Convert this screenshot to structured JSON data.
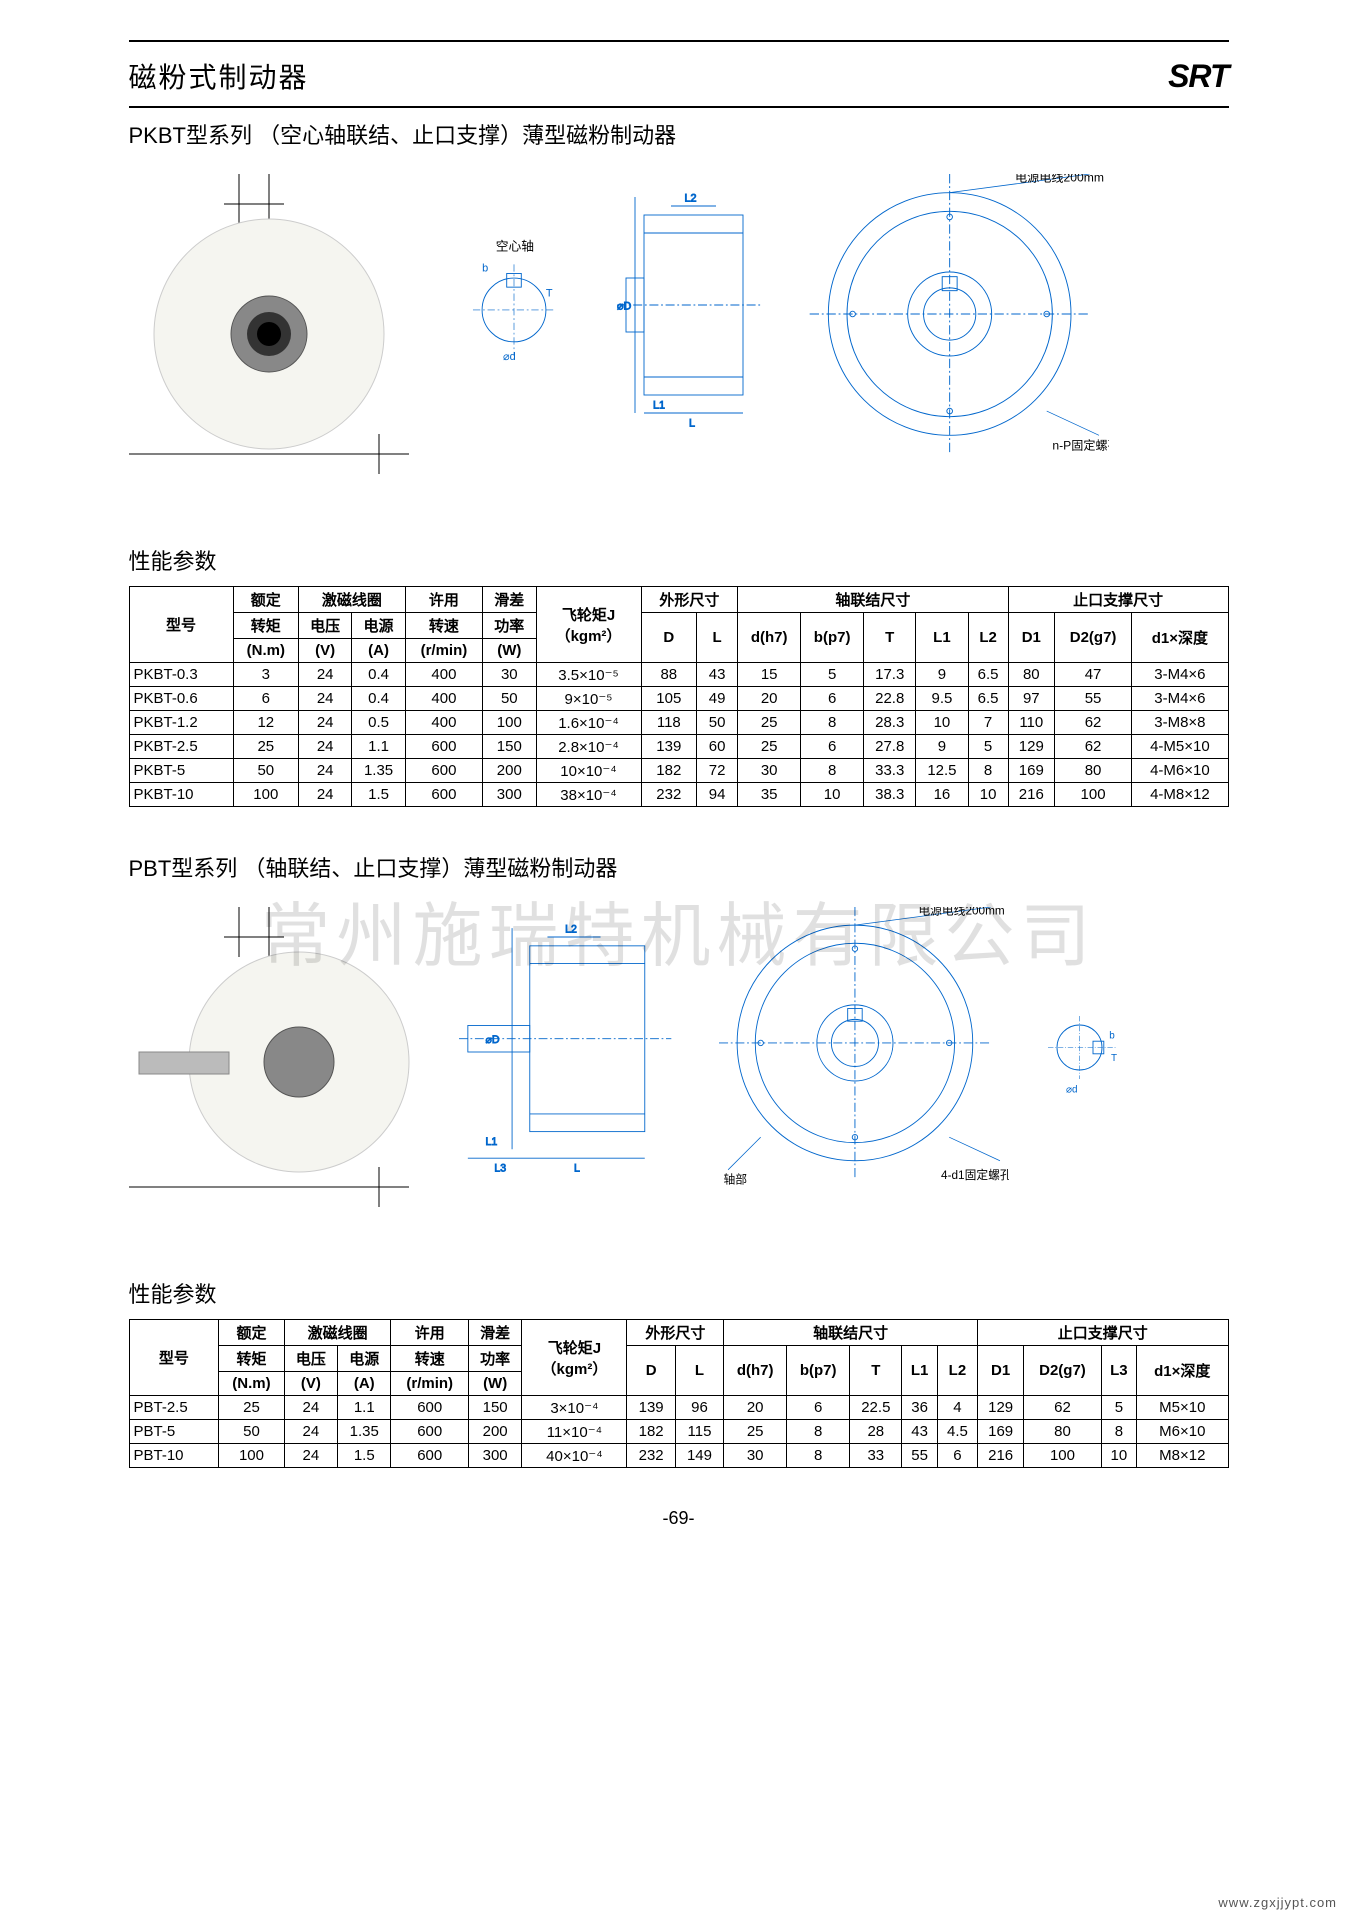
{
  "header": {
    "main_title": "磁粉式制动器",
    "logo": "SRT"
  },
  "section1": {
    "subtitle": "PKBT型系列 （空心轴联结、止口支撑）薄型磁粉制动器",
    "diagram_labels": {
      "power_cable": "电源电线200mm",
      "hollow_shaft": "空心轴",
      "screw_hole": "n-P固定螺孔"
    },
    "perf_title": "性能参数",
    "columns": {
      "model": "型号",
      "torque_group": "额定",
      "torque": "转矩",
      "torque_unit": "(N.m)",
      "coil_group": "激磁线圈",
      "voltage": "电压",
      "voltage_unit": "(V)",
      "current": "电源",
      "current_unit": "(A)",
      "speed_group": "许用",
      "speed": "转速",
      "speed_unit": "(r/min)",
      "slip_group": "滑差",
      "slip": "功率",
      "slip_unit": "(W)",
      "flywheel": "飞轮矩J",
      "flywheel_unit": "（kgm²）",
      "outer": "外形尺寸",
      "shaft": "轴联结尺寸",
      "spigot": "止口支撑尺寸",
      "D": "D",
      "L": "L",
      "dh7": "d(h7)",
      "bp7": "b(p7)",
      "T": "T",
      "L1": "L1",
      "L2": "L2",
      "D1": "D1",
      "D2g7": "D2(g7)",
      "d1depth": "d1×深度"
    },
    "rows": [
      {
        "model": "PKBT-0.3",
        "torque": "3",
        "v": "24",
        "a": "0.4",
        "rpm": "400",
        "w": "30",
        "j": "3.5×10⁻⁵",
        "D": "88",
        "L": "43",
        "dh7": "15",
        "bp7": "5",
        "T": "17.3",
        "L1": "9",
        "L2": "6.5",
        "D1": "80",
        "D2": "47",
        "d1": "3-M4×6"
      },
      {
        "model": "PKBT-0.6",
        "torque": "6",
        "v": "24",
        "a": "0.4",
        "rpm": "400",
        "w": "50",
        "j": "9×10⁻⁵",
        "D": "105",
        "L": "49",
        "dh7": "20",
        "bp7": "6",
        "T": "22.8",
        "L1": "9.5",
        "L2": "6.5",
        "D1": "97",
        "D2": "55",
        "d1": "3-M4×6"
      },
      {
        "model": "PKBT-1.2",
        "torque": "12",
        "v": "24",
        "a": "0.5",
        "rpm": "400",
        "w": "100",
        "j": "1.6×10⁻⁴",
        "D": "118",
        "L": "50",
        "dh7": "25",
        "bp7": "8",
        "T": "28.3",
        "L1": "10",
        "L2": "7",
        "D1": "110",
        "D2": "62",
        "d1": "3-M8×8"
      },
      {
        "model": "PKBT-2.5",
        "torque": "25",
        "v": "24",
        "a": "1.1",
        "rpm": "600",
        "w": "150",
        "j": "2.8×10⁻⁴",
        "D": "139",
        "L": "60",
        "dh7": "25",
        "bp7": "6",
        "T": "27.8",
        "L1": "9",
        "L2": "5",
        "D1": "129",
        "D2": "62",
        "d1": "4-M5×10"
      },
      {
        "model": "PKBT-5",
        "torque": "50",
        "v": "24",
        "a": "1.35",
        "rpm": "600",
        "w": "200",
        "j": "10×10⁻⁴",
        "D": "182",
        "L": "72",
        "dh7": "30",
        "bp7": "8",
        "T": "33.3",
        "L1": "12.5",
        "L2": "8",
        "D1": "169",
        "D2": "80",
        "d1": "4-M6×10"
      },
      {
        "model": "PKBT-10",
        "torque": "100",
        "v": "24",
        "a": "1.5",
        "rpm": "600",
        "w": "300",
        "j": "38×10⁻⁴",
        "D": "232",
        "L": "94",
        "dh7": "35",
        "bp7": "10",
        "T": "38.3",
        "L1": "16",
        "L2": "10",
        "D1": "216",
        "D2": "100",
        "d1": "4-M8×12"
      }
    ]
  },
  "section2": {
    "subtitle": "PBT型系列 （轴联结、止口支撑）薄型磁粉制动器",
    "diagram_labels": {
      "power_cable": "电源电线200mm",
      "shaft_part": "轴部",
      "screw_hole": "4-d1固定螺孔"
    },
    "perf_title": "性能参数",
    "columns": {
      "model": "型号",
      "torque_group": "额定",
      "torque": "转矩",
      "torque_unit": "(N.m)",
      "coil_group": "激磁线圈",
      "voltage": "电压",
      "voltage_unit": "(V)",
      "current": "电源",
      "current_unit": "(A)",
      "speed_group": "许用",
      "speed": "转速",
      "speed_unit": "(r/min)",
      "slip_group": "滑差",
      "slip": "功率",
      "slip_unit": "(W)",
      "flywheel": "飞轮矩J",
      "flywheel_unit": "（kgm²）",
      "outer": "外形尺寸",
      "shaft": "轴联结尺寸",
      "spigot": "止口支撑尺寸",
      "D": "D",
      "L": "L",
      "dh7": "d(h7)",
      "bp7": "b(p7)",
      "T": "T",
      "L1": "L1",
      "L2": "L2",
      "D1": "D1",
      "D2g7": "D2(g7)",
      "L3": "L3",
      "d1depth": "d1×深度"
    },
    "rows": [
      {
        "model": "PBT-2.5",
        "torque": "25",
        "v": "24",
        "a": "1.1",
        "rpm": "600",
        "w": "150",
        "j": "3×10⁻⁴",
        "D": "139",
        "L": "96",
        "dh7": "20",
        "bp7": "6",
        "T": "22.5",
        "L1": "36",
        "L2": "4",
        "D1": "129",
        "D2": "62",
        "L3": "5",
        "d1": "M5×10"
      },
      {
        "model": "PBT-5",
        "torque": "50",
        "v": "24",
        "a": "1.35",
        "rpm": "600",
        "w": "200",
        "j": "11×10⁻⁴",
        "D": "182",
        "L": "115",
        "dh7": "25",
        "bp7": "8",
        "T": "28",
        "L1": "43",
        "L2": "4.5",
        "D1": "169",
        "D2": "80",
        "L3": "8",
        "d1": "M6×10"
      },
      {
        "model": "PBT-10",
        "torque": "100",
        "v": "24",
        "a": "1.5",
        "rpm": "600",
        "w": "300",
        "j": "40×10⁻⁴",
        "D": "232",
        "L": "149",
        "dh7": "30",
        "bp7": "8",
        "T": "33",
        "L1": "55",
        "L2": "6",
        "D1": "216",
        "D2": "100",
        "L3": "10",
        "d1": "M8×12"
      }
    ]
  },
  "watermark": "常州施瑞特机械有限公司",
  "page_number": "-69-",
  "footer_url": "www.zgxjjypt.com",
  "colors": {
    "diagram_line": "#0066cc",
    "border": "#000000",
    "watermark": "rgba(0,0,0,0.12)"
  }
}
